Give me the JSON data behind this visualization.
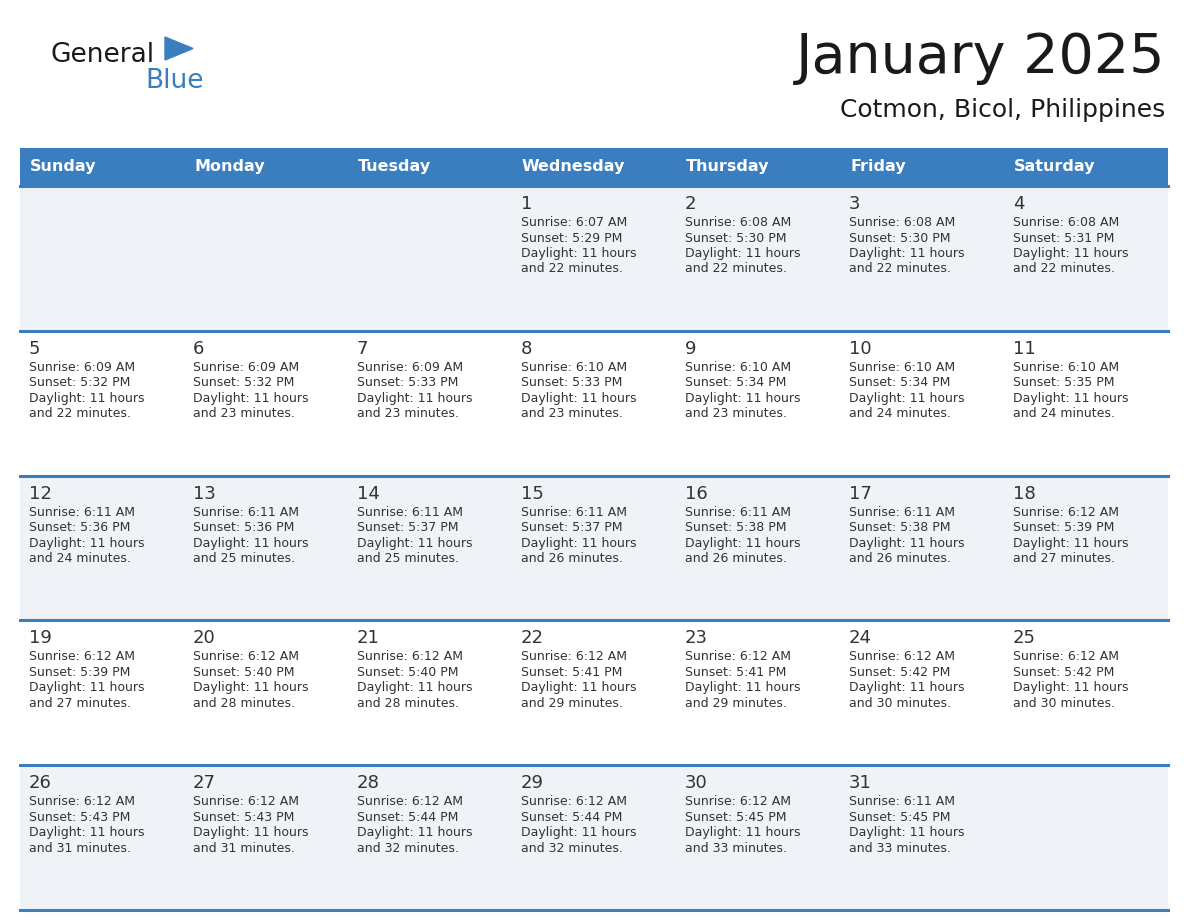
{
  "title": "January 2025",
  "subtitle": "Cotmon, Bicol, Philippines",
  "header_bg_color": "#3a7ebf",
  "header_text_color": "#ffffff",
  "cell_bg_color_light": "#eff3f8",
  "cell_bg_color_white": "#ffffff",
  "row_line_color": "#3a7ebf",
  "day_names": [
    "Sunday",
    "Monday",
    "Tuesday",
    "Wednesday",
    "Thursday",
    "Friday",
    "Saturday"
  ],
  "calendar_data": [
    [
      {
        "day": "",
        "sunrise": "",
        "sunset": "",
        "daylight": ""
      },
      {
        "day": "",
        "sunrise": "",
        "sunset": "",
        "daylight": ""
      },
      {
        "day": "",
        "sunrise": "",
        "sunset": "",
        "daylight": ""
      },
      {
        "day": "1",
        "sunrise": "6:07 AM",
        "sunset": "5:29 PM",
        "daylight": "11 hours and 22 minutes."
      },
      {
        "day": "2",
        "sunrise": "6:08 AM",
        "sunset": "5:30 PM",
        "daylight": "11 hours and 22 minutes."
      },
      {
        "day": "3",
        "sunrise": "6:08 AM",
        "sunset": "5:30 PM",
        "daylight": "11 hours and 22 minutes."
      },
      {
        "day": "4",
        "sunrise": "6:08 AM",
        "sunset": "5:31 PM",
        "daylight": "11 hours and 22 minutes."
      }
    ],
    [
      {
        "day": "5",
        "sunrise": "6:09 AM",
        "sunset": "5:32 PM",
        "daylight": "11 hours and 22 minutes."
      },
      {
        "day": "6",
        "sunrise": "6:09 AM",
        "sunset": "5:32 PM",
        "daylight": "11 hours and 23 minutes."
      },
      {
        "day": "7",
        "sunrise": "6:09 AM",
        "sunset": "5:33 PM",
        "daylight": "11 hours and 23 minutes."
      },
      {
        "day": "8",
        "sunrise": "6:10 AM",
        "sunset": "5:33 PM",
        "daylight": "11 hours and 23 minutes."
      },
      {
        "day": "9",
        "sunrise": "6:10 AM",
        "sunset": "5:34 PM",
        "daylight": "11 hours and 23 minutes."
      },
      {
        "day": "10",
        "sunrise": "6:10 AM",
        "sunset": "5:34 PM",
        "daylight": "11 hours and 24 minutes."
      },
      {
        "day": "11",
        "sunrise": "6:10 AM",
        "sunset": "5:35 PM",
        "daylight": "11 hours and 24 minutes."
      }
    ],
    [
      {
        "day": "12",
        "sunrise": "6:11 AM",
        "sunset": "5:36 PM",
        "daylight": "11 hours and 24 minutes."
      },
      {
        "day": "13",
        "sunrise": "6:11 AM",
        "sunset": "5:36 PM",
        "daylight": "11 hours and 25 minutes."
      },
      {
        "day": "14",
        "sunrise": "6:11 AM",
        "sunset": "5:37 PM",
        "daylight": "11 hours and 25 minutes."
      },
      {
        "day": "15",
        "sunrise": "6:11 AM",
        "sunset": "5:37 PM",
        "daylight": "11 hours and 26 minutes."
      },
      {
        "day": "16",
        "sunrise": "6:11 AM",
        "sunset": "5:38 PM",
        "daylight": "11 hours and 26 minutes."
      },
      {
        "day": "17",
        "sunrise": "6:11 AM",
        "sunset": "5:38 PM",
        "daylight": "11 hours and 26 minutes."
      },
      {
        "day": "18",
        "sunrise": "6:12 AM",
        "sunset": "5:39 PM",
        "daylight": "11 hours and 27 minutes."
      }
    ],
    [
      {
        "day": "19",
        "sunrise": "6:12 AM",
        "sunset": "5:39 PM",
        "daylight": "11 hours and 27 minutes."
      },
      {
        "day": "20",
        "sunrise": "6:12 AM",
        "sunset": "5:40 PM",
        "daylight": "11 hours and 28 minutes."
      },
      {
        "day": "21",
        "sunrise": "6:12 AM",
        "sunset": "5:40 PM",
        "daylight": "11 hours and 28 minutes."
      },
      {
        "day": "22",
        "sunrise": "6:12 AM",
        "sunset": "5:41 PM",
        "daylight": "11 hours and 29 minutes."
      },
      {
        "day": "23",
        "sunrise": "6:12 AM",
        "sunset": "5:41 PM",
        "daylight": "11 hours and 29 minutes."
      },
      {
        "day": "24",
        "sunrise": "6:12 AM",
        "sunset": "5:42 PM",
        "daylight": "11 hours and 30 minutes."
      },
      {
        "day": "25",
        "sunrise": "6:12 AM",
        "sunset": "5:42 PM",
        "daylight": "11 hours and 30 minutes."
      }
    ],
    [
      {
        "day": "26",
        "sunrise": "6:12 AM",
        "sunset": "5:43 PM",
        "daylight": "11 hours and 31 minutes."
      },
      {
        "day": "27",
        "sunrise": "6:12 AM",
        "sunset": "5:43 PM",
        "daylight": "11 hours and 31 minutes."
      },
      {
        "day": "28",
        "sunrise": "6:12 AM",
        "sunset": "5:44 PM",
        "daylight": "11 hours and 32 minutes."
      },
      {
        "day": "29",
        "sunrise": "6:12 AM",
        "sunset": "5:44 PM",
        "daylight": "11 hours and 32 minutes."
      },
      {
        "day": "30",
        "sunrise": "6:12 AM",
        "sunset": "5:45 PM",
        "daylight": "11 hours and 33 minutes."
      },
      {
        "day": "31",
        "sunrise": "6:11 AM",
        "sunset": "5:45 PM",
        "daylight": "11 hours and 33 minutes."
      },
      {
        "day": "",
        "sunrise": "",
        "sunset": "",
        "daylight": ""
      }
    ]
  ],
  "logo_general_color": "#1a1a1a",
  "logo_blue_color": "#3a7ebf",
  "logo_triangle_color": "#3a7ebf",
  "title_color": "#1a1a1a",
  "subtitle_color": "#1a1a1a"
}
